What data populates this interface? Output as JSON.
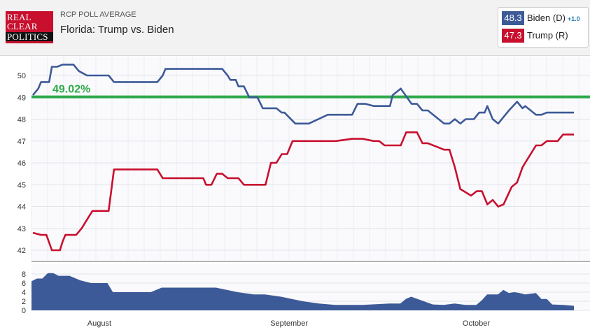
{
  "header": {
    "logo": [
      "REAL",
      "CLEAR",
      "POLITICS"
    ],
    "subtitle": "RCP POLL AVERAGE",
    "title": "Florida: Trump vs. Biden"
  },
  "legend": [
    {
      "value": "48.3",
      "name": "Biden (D)",
      "change": "+1.0",
      "color": "#3d5a98"
    },
    {
      "value": "47.3",
      "name": "Trump (R)",
      "change": "",
      "color": "#c8102e"
    }
  ],
  "chart_data": [
    {
      "type": "line",
      "ylim": [
        41.5,
        50.9
      ],
      "yticks": [
        42,
        43,
        44,
        45,
        46,
        47,
        48,
        49,
        50
      ],
      "x_range": [
        0,
        100
      ],
      "grid": true,
      "reference_line": {
        "value": 49.02,
        "label": "49.02%",
        "color": "#2eaa4a"
      },
      "series": [
        {
          "name": "Biden (D)",
          "color": "#3d5a98",
          "x": [
            0,
            1,
            1.5,
            3,
            3.5,
            4.5,
            5.5,
            7.5,
            8.5,
            10,
            11,
            14,
            15,
            16,
            23,
            24,
            24.5,
            35,
            36,
            36.5,
            37.5,
            38,
            39,
            40,
            41.5,
            42.5,
            45,
            46,
            46.5,
            48.5,
            49.5,
            51,
            54.5,
            55.5,
            59,
            60,
            61.5,
            63,
            66,
            66.5,
            68,
            70,
            71,
            72,
            73,
            76,
            77,
            78,
            79,
            80,
            81,
            81.5,
            82.5,
            83.5,
            84,
            85,
            86,
            88,
            89.5,
            90.5,
            91,
            93,
            94,
            95,
            95.5,
            96,
            97,
            98,
            99,
            100
          ],
          "y": [
            49.1,
            49.4,
            49.7,
            49.7,
            50.4,
            50.4,
            50.5,
            50.5,
            50.2,
            50.0,
            50.0,
            50.0,
            49.7,
            49.7,
            49.7,
            50.0,
            50.3,
            50.3,
            50.0,
            49.8,
            49.8,
            49.5,
            49.5,
            49.0,
            49.0,
            48.5,
            48.5,
            48.3,
            48.3,
            47.8,
            47.8,
            47.8,
            48.2,
            48.2,
            48.2,
            48.7,
            48.7,
            48.6,
            48.6,
            49.1,
            49.4,
            48.7,
            48.7,
            48.4,
            48.4,
            47.8,
            47.8,
            48.0,
            47.8,
            48.0,
            48.0,
            48.0,
            48.3,
            48.3,
            48.6,
            48.0,
            47.8,
            48.4,
            48.8,
            48.5,
            48.6,
            48.2,
            48.2,
            48.3,
            48.3,
            48.3,
            48.3,
            48.3,
            48.3,
            48.3
          ],
          "end_x": 100
        },
        {
          "name": "Trump (R)",
          "color": "#c8102e",
          "x": [
            0,
            1.5,
            2.5,
            3.5,
            5,
            5.5,
            6,
            8,
            9,
            10,
            11,
            14,
            15,
            16,
            23,
            24,
            31.5,
            32,
            33,
            34,
            35,
            36,
            37.5,
            38,
            39,
            42,
            43,
            44,
            45,
            46,
            47,
            48,
            50,
            52,
            56,
            59,
            61,
            63,
            64,
            65,
            68,
            69,
            71,
            72,
            73,
            75,
            76,
            77,
            78,
            79,
            81,
            82,
            83,
            84,
            85,
            86,
            87,
            88.5,
            89.5,
            90.5,
            91,
            93,
            94,
            95,
            96,
            97,
            98,
            99,
            100
          ],
          "y": [
            42.8,
            42.7,
            42.7,
            42.0,
            42.0,
            42.4,
            42.7,
            42.7,
            43.0,
            43.4,
            43.8,
            43.8,
            45.7,
            45.7,
            45.7,
            45.3,
            45.3,
            45.0,
            45.0,
            45.5,
            45.5,
            45.3,
            45.3,
            45.3,
            45.0,
            45.0,
            45.0,
            46.0,
            46.0,
            46.4,
            46.4,
            47.0,
            47.0,
            47.0,
            47.0,
            47.1,
            47.1,
            47.0,
            47.0,
            46.8,
            46.8,
            47.4,
            47.4,
            46.9,
            46.9,
            46.7,
            46.6,
            46.6,
            45.8,
            44.8,
            44.5,
            44.7,
            44.7,
            44.1,
            44.3,
            44.0,
            44.1,
            44.9,
            45.1,
            45.8,
            46.0,
            46.8,
            46.8,
            47.0,
            47.0,
            47.0,
            47.3,
            47.3,
            47.3
          ],
          "end_x": 100
        }
      ]
    },
    {
      "type": "area",
      "ylim": [
        0,
        9
      ],
      "yticks": [
        0,
        2,
        4,
        6,
        8
      ],
      "categories": [
        "August",
        "September",
        "October"
      ],
      "category_x": [
        12.5,
        47.5,
        82
      ],
      "series": [
        {
          "name": "spread",
          "color": "#3d5a98",
          "x": [
            0,
            1,
            2,
            3,
            4,
            5,
            7,
            9,
            11,
            14,
            15,
            22,
            24,
            34,
            36,
            38,
            41,
            43,
            46,
            50,
            53,
            56,
            61,
            66,
            68,
            69,
            70,
            74,
            76,
            78,
            80,
            82,
            83,
            84,
            86,
            87,
            88,
            89,
            90,
            91,
            93,
            94,
            95,
            96,
            98,
            100
          ],
          "y": [
            6.4,
            7.0,
            7.0,
            8.2,
            8.2,
            7.6,
            7.6,
            6.6,
            6.0,
            6.0,
            4.0,
            4.0,
            5.0,
            5.0,
            4.5,
            4.0,
            3.5,
            3.5,
            3.0,
            2.0,
            1.5,
            1.2,
            1.2,
            1.5,
            1.5,
            2.5,
            3.0,
            1.3,
            1.2,
            1.5,
            1.2,
            1.2,
            2.2,
            3.5,
            3.5,
            4.5,
            3.8,
            4.0,
            3.8,
            3.5,
            3.8,
            2.5,
            2.5,
            1.3,
            1.2,
            1.0
          ]
        }
      ]
    }
  ]
}
